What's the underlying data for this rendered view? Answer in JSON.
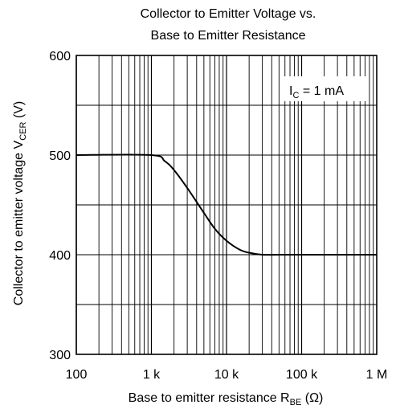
{
  "chart_data": {
    "type": "line",
    "title_line1": "Collector to Emitter Voltage vs.",
    "title_line2": "Base to Emitter Resistance",
    "xlabel": {
      "text": "Base to emitter resistance  R",
      "sub": "BE",
      "unit": "  (Ω)"
    },
    "ylabel": {
      "text": "Collector to emitter voltage  V",
      "sub": "CER",
      "unit": "  (V)"
    },
    "x_scale": "log",
    "xlim": [
      100,
      1000000
    ],
    "ylim": [
      300,
      600
    ],
    "x_ticks": [
      {
        "value": 100,
        "label": "100"
      },
      {
        "value": 1000,
        "label": "1 k"
      },
      {
        "value": 10000,
        "label": "10 k"
      },
      {
        "value": 100000,
        "label": "100 k"
      },
      {
        "value": 1000000,
        "label": "1 M"
      }
    ],
    "y_ticks": [
      {
        "value": 300,
        "label": "300"
      },
      {
        "value": 400,
        "label": "400"
      },
      {
        "value": 500,
        "label": "500"
      },
      {
        "value": 600,
        "label": "600"
      }
    ],
    "y_minor_gridlines": [
      350,
      450,
      550
    ],
    "grid": true,
    "annotation": {
      "text": "I",
      "sub": "C",
      "rest": " = 1 mA"
    },
    "series": [
      {
        "x": [
          100,
          1000,
          1500,
          2000,
          3000,
          5000,
          7000,
          10000,
          15000,
          20000,
          30000,
          50000,
          100000,
          1000000
        ],
        "y": [
          500,
          500,
          494,
          485,
          467,
          442,
          426,
          414,
          405,
          402,
          400,
          400,
          400,
          400
        ]
      }
    ]
  }
}
